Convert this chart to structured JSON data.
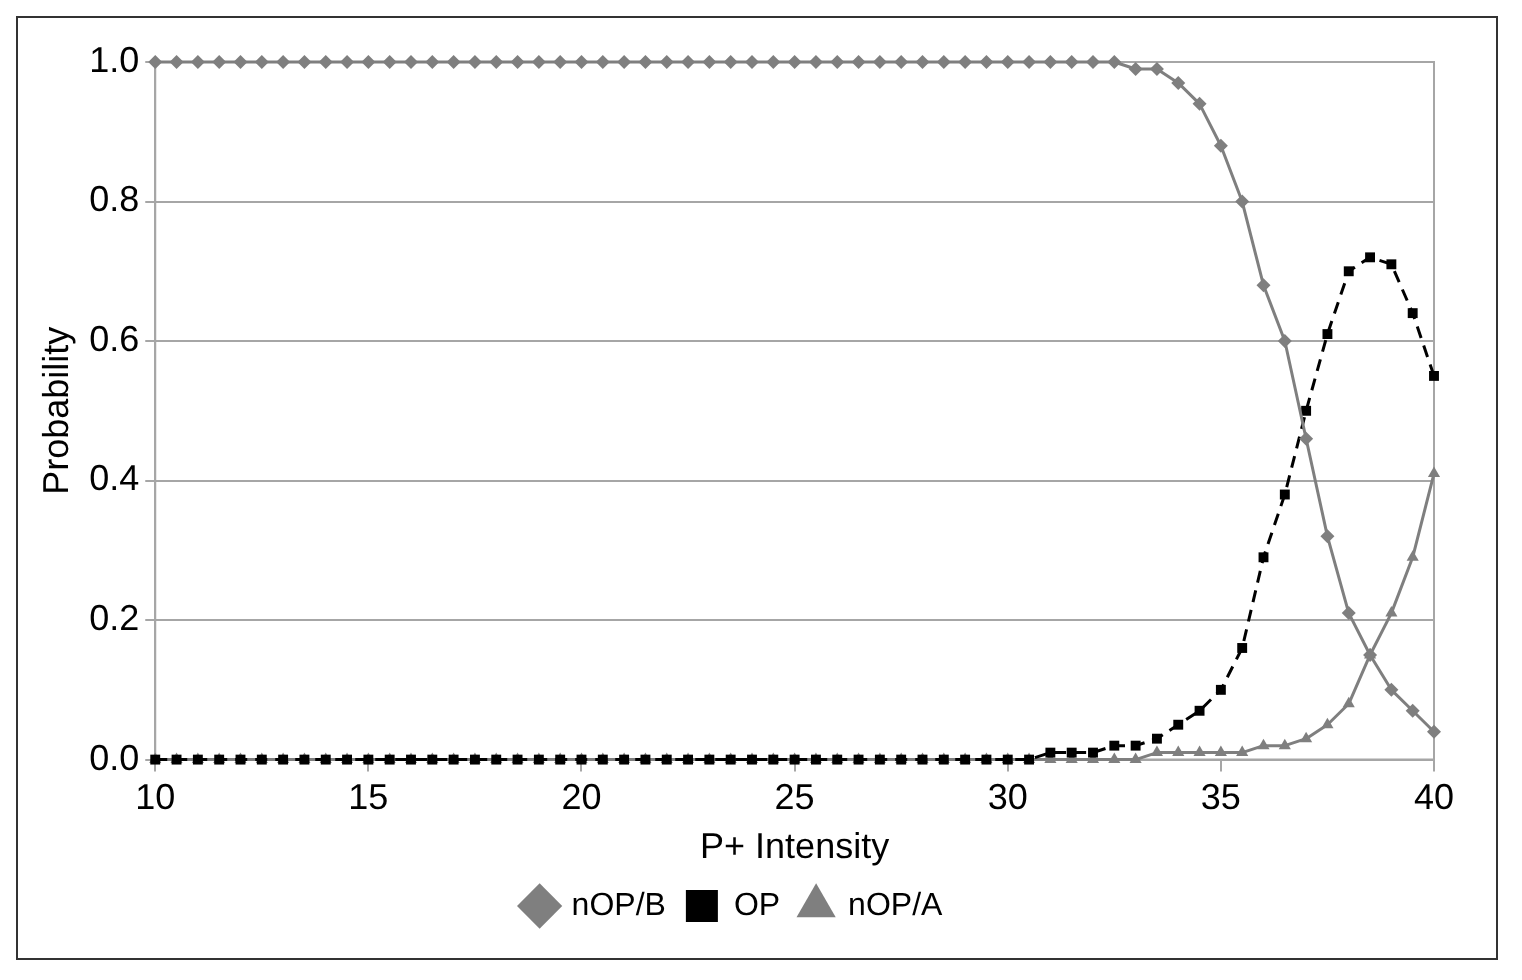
{
  "chart_data": {
    "type": "line",
    "xlabel": "P+ Intensity",
    "ylabel": "Probability",
    "x": [
      10,
      10.5,
      11,
      11.5,
      12,
      12.5,
      13,
      13.5,
      14,
      14.5,
      15,
      15.5,
      16,
      16.5,
      17,
      17.5,
      18,
      18.5,
      19,
      19.5,
      20,
      20.5,
      21,
      21.5,
      22,
      22.5,
      23,
      23.5,
      24,
      24.5,
      25,
      25.5,
      26,
      26.5,
      27,
      27.5,
      28,
      28.5,
      29,
      29.5,
      30,
      30.5,
      31,
      31.5,
      32,
      32.5,
      33,
      33.5,
      34,
      34.5,
      35,
      35.5,
      36,
      36.5,
      37,
      37.5,
      38,
      38.5,
      39,
      39.5,
      40
    ],
    "series": [
      {
        "name": "nOP/B",
        "color": "#7f7f7f",
        "marker": "diamond",
        "line_style": "solid",
        "values": [
          1,
          1,
          1,
          1,
          1,
          1,
          1,
          1,
          1,
          1,
          1,
          1,
          1,
          1,
          1,
          1,
          1,
          1,
          1,
          1,
          1,
          1,
          1,
          1,
          1,
          1,
          1,
          1,
          1,
          1,
          1,
          1,
          1,
          1,
          1,
          1,
          1,
          1,
          1,
          1,
          1,
          1,
          1,
          1,
          1,
          1,
          0.99,
          0.99,
          0.97,
          0.94,
          0.88,
          0.8,
          0.68,
          0.6,
          0.46,
          0.32,
          0.21,
          0.15,
          0.1,
          0.07,
          0.04
        ]
      },
      {
        "name": "OP",
        "color": "#000000",
        "marker": "square",
        "line_style": "dashed",
        "values": [
          0,
          0,
          0,
          0,
          0,
          0,
          0,
          0,
          0,
          0,
          0,
          0,
          0,
          0,
          0,
          0,
          0,
          0,
          0,
          0,
          0,
          0,
          0,
          0,
          0,
          0,
          0,
          0,
          0,
          0,
          0,
          0,
          0,
          0,
          0,
          0,
          0,
          0,
          0,
          0,
          0,
          0,
          0.01,
          0.01,
          0.01,
          0.02,
          0.02,
          0.03,
          0.05,
          0.07,
          0.1,
          0.16,
          0.29,
          0.38,
          0.5,
          0.61,
          0.7,
          0.72,
          0.71,
          0.64,
          0.55
        ]
      },
      {
        "name": "nOP/A",
        "color": "#7f7f7f",
        "marker": "triangle",
        "line_style": "solid",
        "values": [
          0,
          0,
          0,
          0,
          0,
          0,
          0,
          0,
          0,
          0,
          0,
          0,
          0,
          0,
          0,
          0,
          0,
          0,
          0,
          0,
          0,
          0,
          0,
          0,
          0,
          0,
          0,
          0,
          0,
          0,
          0,
          0,
          0,
          0,
          0,
          0,
          0,
          0,
          0,
          0,
          0,
          0,
          0,
          0,
          0,
          0,
          0,
          0.01,
          0.01,
          0.01,
          0.01,
          0.01,
          0.02,
          0.02,
          0.03,
          0.05,
          0.08,
          0.15,
          0.21,
          0.29,
          0.41
        ]
      }
    ],
    "xlim": [
      10,
      40
    ],
    "xticks": [
      10,
      15,
      20,
      25,
      30,
      35,
      40
    ],
    "ylim": [
      0,
      1
    ],
    "yticks": [
      {
        "value": 0,
        "label": "0.0"
      },
      {
        "value": 0.2,
        "label": "0.2"
      },
      {
        "value": 0.4,
        "label": "0.4"
      },
      {
        "value": 0.6,
        "label": "0.6"
      },
      {
        "value": 0.8,
        "label": "0.8"
      },
      {
        "value": 1,
        "label": "1.0"
      }
    ],
    "grid": "y",
    "legend": "bottom"
  }
}
